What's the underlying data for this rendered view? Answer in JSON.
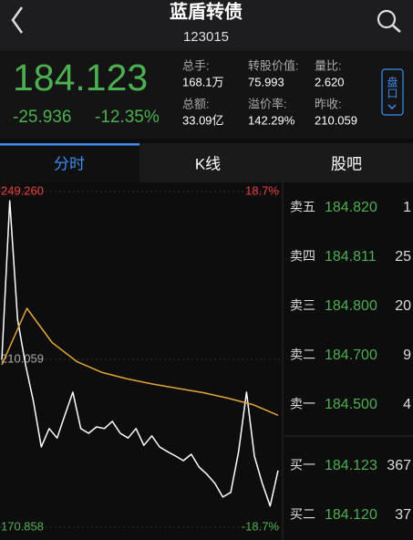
{
  "header": {
    "title": "蓝盾转债",
    "code": "123015"
  },
  "quote": {
    "price": "184.123",
    "change": "-25.936",
    "change_pct": "-12.35%",
    "stats": [
      {
        "label": "总手:",
        "value": "168.1万"
      },
      {
        "label": "总额:",
        "value": "33.09亿"
      },
      {
        "label": "转股价值:",
        "value": "75.993"
      },
      {
        "label": "溢价率:",
        "value": "142.29%"
      },
      {
        "label": "量比:",
        "value": "2.620"
      },
      {
        "label": "昨收:",
        "value": "210.059"
      }
    ],
    "button": "盘口"
  },
  "tabs": [
    "分时",
    "K线",
    "股吧"
  ],
  "chart_data": {
    "type": "line",
    "ylim": [
      170.858,
      249.26
    ],
    "yticks": [
      {
        "value": 249.26,
        "label": "249.260"
      },
      {
        "value": 210.059,
        "label": "210.059"
      },
      {
        "value": 170.858,
        "label": "170.858"
      }
    ],
    "y2lim": [
      -18.7,
      18.7
    ],
    "y2ticks": [
      {
        "value": 18.7,
        "label": "18.7%"
      },
      {
        "value": -18.7,
        "label": "-18.7%"
      }
    ],
    "series": [
      {
        "color": "#ffffff",
        "values": [
          210,
          247.1,
          219.4,
          208.8,
          200.3,
          189.6,
          193.9,
          191.7,
          197.1,
          202.4,
          193.9,
          192.8,
          194.3,
          193.9,
          195.6,
          192.8,
          191.7,
          193.9,
          190.0,
          192.2,
          189.6,
          188.5,
          187.5,
          186.4,
          187.9,
          184.9,
          183.2,
          181.1,
          177.9,
          179.0,
          188.5,
          202.4,
          187.5,
          181.1,
          175.8,
          184.1
        ]
      },
      {
        "color": "#e0a53a",
        "values": [
          208.8,
          222,
          214,
          209.5,
          207,
          205.5,
          204.3,
          203.3,
          202.3,
          201,
          199.5,
          197
        ]
      }
    ]
  },
  "order_book": [
    {
      "label": "卖五",
      "price": "184.820",
      "volume": "1"
    },
    {
      "label": "卖四",
      "price": "184.811",
      "volume": "25"
    },
    {
      "label": "卖三",
      "price": "184.800",
      "volume": "20"
    },
    {
      "label": "卖二",
      "price": "184.700",
      "volume": "9"
    },
    {
      "label": "卖一",
      "price": "184.500",
      "volume": "4"
    },
    {
      "label": "买一",
      "price": "184.123",
      "volume": "367"
    },
    {
      "label": "买二",
      "price": "184.120",
      "volume": "37"
    }
  ]
}
